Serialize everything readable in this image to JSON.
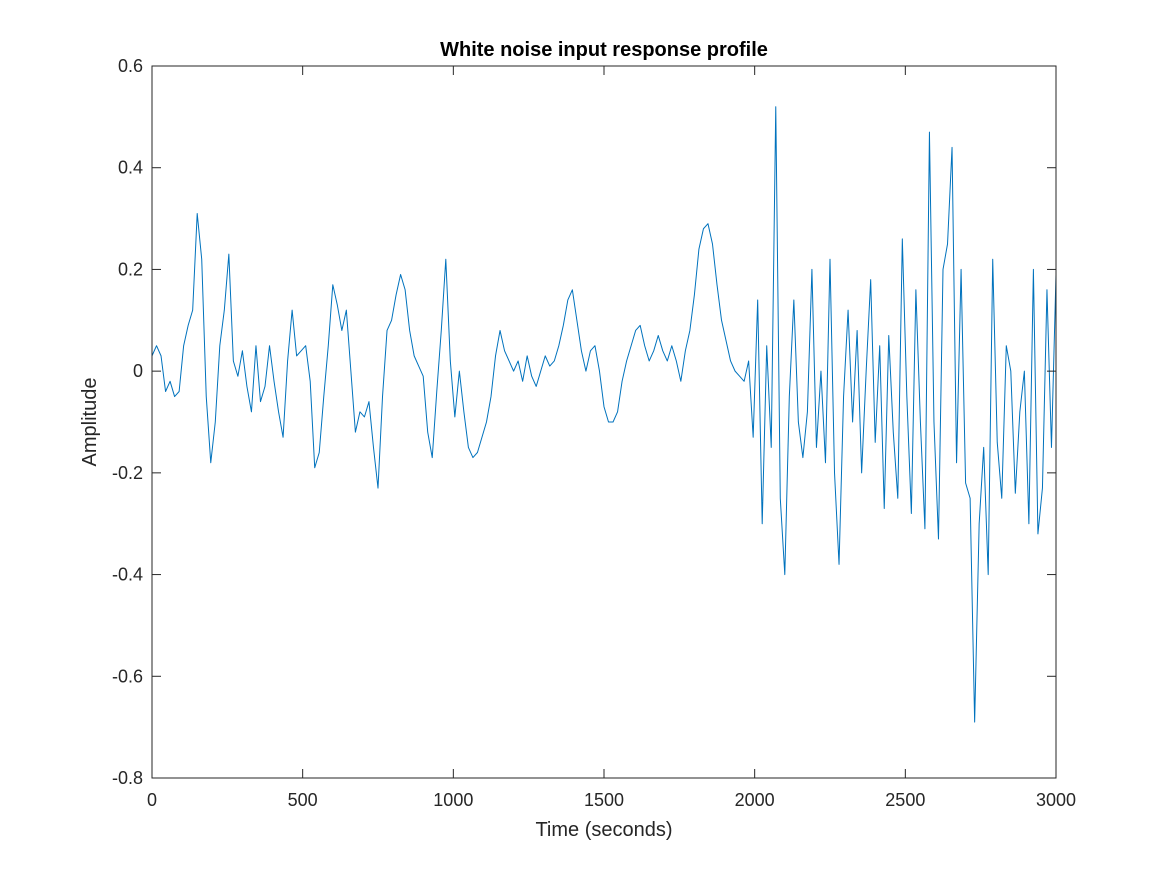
{
  "chart_data": {
    "type": "line",
    "title": "White noise input response profile",
    "xlabel": "Time (seconds)",
    "ylabel": "Amplitude",
    "xlim": [
      0,
      3000
    ],
    "ylim": [
      -0.8,
      0.6
    ],
    "xticks": [
      0,
      500,
      1000,
      1500,
      2000,
      2500,
      3000
    ],
    "xtick_labels": [
      "0",
      "500",
      "1000",
      "1500",
      "2000",
      "2500",
      "3000"
    ],
    "yticks": [
      -0.8,
      -0.6,
      -0.4,
      -0.2,
      0,
      0.2,
      0.4,
      0.6
    ],
    "ytick_labels": [
      "-0.8",
      "-0.6",
      "-0.4",
      "-0.2",
      "0",
      "0.2",
      "0.4",
      "0.6"
    ],
    "grid": false,
    "line_color": "#0072BD",
    "axes_color": "#262626",
    "series": [
      {
        "x": [
          0,
          15,
          30,
          45,
          60,
          75,
          90,
          105,
          120,
          135,
          150,
          165,
          180,
          195,
          210,
          225,
          240,
          255,
          270,
          285,
          300,
          315,
          330,
          345,
          360,
          375,
          390,
          405,
          420,
          435,
          450,
          465,
          480,
          495,
          510,
          525,
          540,
          555,
          570,
          585,
          600,
          615,
          630,
          645,
          660,
          675,
          690,
          705,
          720,
          735,
          750,
          765,
          780,
          795,
          810,
          825,
          840,
          855,
          870,
          885,
          900,
          915,
          930,
          945,
          960,
          975,
          990,
          1005,
          1020,
          1035,
          1050,
          1065,
          1080,
          1095,
          1110,
          1125,
          1140,
          1155,
          1170,
          1185,
          1200,
          1215,
          1230,
          1245,
          1260,
          1275,
          1290,
          1305,
          1320,
          1335,
          1350,
          1365,
          1380,
          1395,
          1410,
          1425,
          1440,
          1455,
          1470,
          1485,
          1500,
          1515,
          1530,
          1545,
          1560,
          1575,
          1590,
          1605,
          1620,
          1635,
          1650,
          1665,
          1680,
          1695,
          1710,
          1725,
          1740,
          1755,
          1770,
          1785,
          1800,
          1815,
          1830,
          1845,
          1860,
          1875,
          1890,
          1905,
          1920,
          1935,
          1950,
          1965,
          1980,
          1995,
          2010,
          2025,
          2040,
          2055,
          2070,
          2085,
          2100,
          2115,
          2130,
          2145,
          2160,
          2175,
          2190,
          2205,
          2220,
          2235,
          2250,
          2265,
          2280,
          2295,
          2310,
          2325,
          2340,
          2355,
          2370,
          2385,
          2400,
          2415,
          2430,
          2445,
          2460,
          2475,
          2490,
          2505,
          2520,
          2535,
          2550,
          2565,
          2580,
          2595,
          2610,
          2625,
          2640,
          2655,
          2670,
          2685,
          2700,
          2715,
          2730,
          2745,
          2760,
          2775,
          2790,
          2805,
          2820,
          2835,
          2850,
          2865,
          2880,
          2895,
          2910,
          2925,
          2940,
          2955,
          2970,
          2985,
          3000
        ],
        "y": [
          0.03,
          0.05,
          0.03,
          -0.04,
          -0.02,
          -0.05,
          -0.04,
          0.05,
          0.09,
          0.12,
          0.31,
          0.22,
          -0.05,
          -0.18,
          -0.1,
          0.05,
          0.12,
          0.23,
          0.02,
          -0.01,
          0.04,
          -0.03,
          -0.08,
          0.05,
          -0.06,
          -0.03,
          0.05,
          -0.02,
          -0.08,
          -0.13,
          0.02,
          0.12,
          0.03,
          0.04,
          0.05,
          -0.02,
          -0.19,
          -0.16,
          -0.05,
          0.05,
          0.17,
          0.13,
          0.08,
          0.12,
          0.0,
          -0.12,
          -0.08,
          -0.09,
          -0.06,
          -0.15,
          -0.23,
          -0.05,
          0.08,
          0.1,
          0.15,
          0.19,
          0.16,
          0.08,
          0.03,
          0.01,
          -0.01,
          -0.12,
          -0.17,
          -0.04,
          0.08,
          0.22,
          0.02,
          -0.09,
          0.0,
          -0.08,
          -0.15,
          -0.17,
          -0.16,
          -0.13,
          -0.1,
          -0.05,
          0.03,
          0.08,
          0.04,
          0.02,
          0.0,
          0.02,
          -0.02,
          0.03,
          -0.01,
          -0.03,
          0.0,
          0.03,
          0.01,
          0.02,
          0.05,
          0.09,
          0.14,
          0.16,
          0.1,
          0.04,
          0.0,
          0.04,
          0.05,
          0.0,
          -0.07,
          -0.1,
          -0.1,
          -0.08,
          -0.02,
          0.02,
          0.05,
          0.08,
          0.09,
          0.05,
          0.02,
          0.04,
          0.07,
          0.04,
          0.02,
          0.05,
          0.02,
          -0.02,
          0.04,
          0.08,
          0.15,
          0.24,
          0.28,
          0.29,
          0.25,
          0.17,
          0.1,
          0.06,
          0.02,
          0.0,
          -0.01,
          -0.02,
          0.02,
          -0.13,
          0.14,
          -0.3,
          0.05,
          -0.15,
          0.52,
          -0.25,
          -0.4,
          -0.05,
          0.14,
          -0.1,
          -0.17,
          -0.08,
          0.2,
          -0.15,
          0.0,
          -0.18,
          0.22,
          -0.2,
          -0.38,
          -0.05,
          0.12,
          -0.1,
          0.08,
          -0.2,
          0.0,
          0.18,
          -0.14,
          0.05,
          -0.27,
          0.07,
          -0.12,
          -0.25,
          0.26,
          -0.05,
          -0.28,
          0.16,
          -0.1,
          -0.31,
          0.47,
          -0.1,
          -0.33,
          0.2,
          0.25,
          0.44,
          -0.18,
          0.2,
          -0.22,
          -0.25,
          -0.69,
          -0.3,
          -0.15,
          -0.4,
          0.22,
          -0.14,
          -0.25,
          0.05,
          0.0,
          -0.24,
          -0.08,
          0.0,
          -0.3,
          0.2,
          -0.32,
          -0.23,
          0.16,
          -0.15,
          0.19
        ]
      }
    ]
  }
}
